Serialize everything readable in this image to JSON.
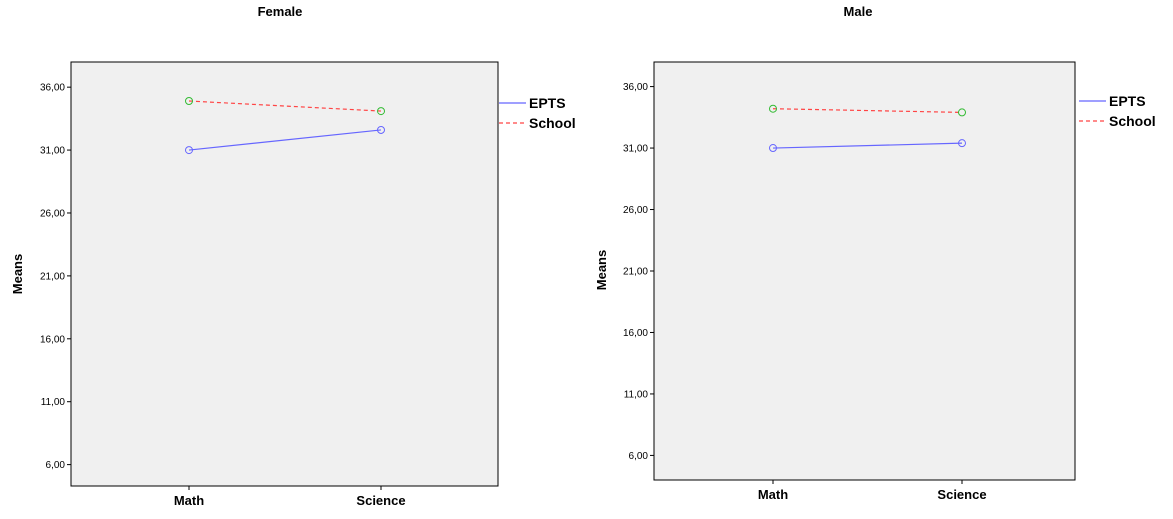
{
  "chart_data": [
    {
      "type": "line",
      "title": "Female",
      "ylabel": "Means",
      "xlabel": "",
      "categories": [
        "Math",
        "Science"
      ],
      "yticks": [
        "6,00",
        "11,00",
        "16,00",
        "21,00",
        "26,00",
        "31,00",
        "36,00"
      ],
      "ylim": [
        4.3,
        38.0
      ],
      "grid": false,
      "legend_position": "right",
      "series": [
        {
          "name": "EPTS",
          "values": [
            31.0,
            32.6
          ],
          "color": "#6666ff",
          "dash": "solid",
          "marker_color": "#6666ff"
        },
        {
          "name": "School",
          "values": [
            34.9,
            34.1
          ],
          "color": "#ff4444",
          "dash": "dashed",
          "marker_color": "#33bb33"
        }
      ]
    },
    {
      "type": "line",
      "title": "Male",
      "ylabel": "Means",
      "xlabel": "",
      "categories": [
        "Math",
        "Science"
      ],
      "yticks": [
        "6,00",
        "11,00",
        "16,00",
        "21,00",
        "26,00",
        "31,00",
        "36,00"
      ],
      "ylim": [
        4.0,
        38.0
      ],
      "grid": false,
      "legend_position": "right",
      "series": [
        {
          "name": "EPTS",
          "values": [
            31.0,
            31.4
          ],
          "color": "#6666ff",
          "dash": "solid",
          "marker_color": "#6666ff"
        },
        {
          "name": "School",
          "values": [
            34.2,
            33.9
          ],
          "color": "#ff4444",
          "dash": "dashed",
          "marker_color": "#33bb33"
        }
      ]
    }
  ]
}
